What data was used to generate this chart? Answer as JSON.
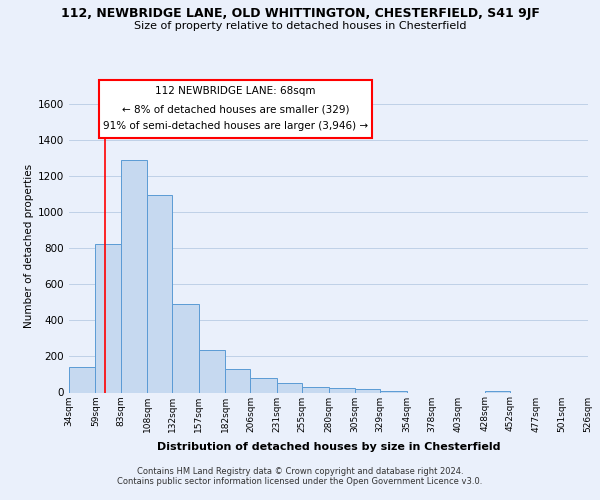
{
  "title_main": "112, NEWBRIDGE LANE, OLD WHITTINGTON, CHESTERFIELD, S41 9JF",
  "title_sub": "Size of property relative to detached houses in Chesterfield",
  "xlabel": "Distribution of detached houses by size in Chesterfield",
  "ylabel": "Number of detached properties",
  "bar_left_edges": [
    34,
    59,
    83,
    108,
    132,
    157,
    182,
    206,
    231,
    255,
    280,
    305,
    329,
    354,
    378,
    403,
    428,
    452,
    477,
    501
  ],
  "bar_widths": [
    25,
    24,
    25,
    24,
    25,
    25,
    24,
    25,
    24,
    25,
    25,
    24,
    25,
    24,
    25,
    25,
    24,
    25,
    24,
    25
  ],
  "bar_heights": [
    140,
    820,
    1285,
    1095,
    490,
    235,
    130,
    80,
    55,
    30,
    25,
    18,
    10,
    0,
    0,
    0,
    10,
    0,
    0,
    0
  ],
  "bar_color": "#c6d9f0",
  "bar_edge_color": "#5b9bd5",
  "tick_labels": [
    "34sqm",
    "59sqm",
    "83sqm",
    "108sqm",
    "132sqm",
    "157sqm",
    "182sqm",
    "206sqm",
    "231sqm",
    "255sqm",
    "280sqm",
    "305sqm",
    "329sqm",
    "354sqm",
    "378sqm",
    "403sqm",
    "428sqm",
    "452sqm",
    "477sqm",
    "501sqm",
    "526sqm"
  ],
  "ylim": [
    0,
    1620
  ],
  "yticks": [
    0,
    200,
    400,
    600,
    800,
    1000,
    1200,
    1400,
    1600
  ],
  "red_line_x": 68,
  "annotation_line1": "112 NEWBRIDGE LANE: 68sqm",
  "annotation_line2": "← 8% of detached houses are smaller (329)",
  "annotation_line3": "91% of semi-detached houses are larger (3,946) →",
  "footer_text": "Contains HM Land Registry data © Crown copyright and database right 2024.\nContains public sector information licensed under the Open Government Licence v3.0.",
  "bg_color": "#eaf0fb",
  "plot_bg_color": "#eaf0fb"
}
